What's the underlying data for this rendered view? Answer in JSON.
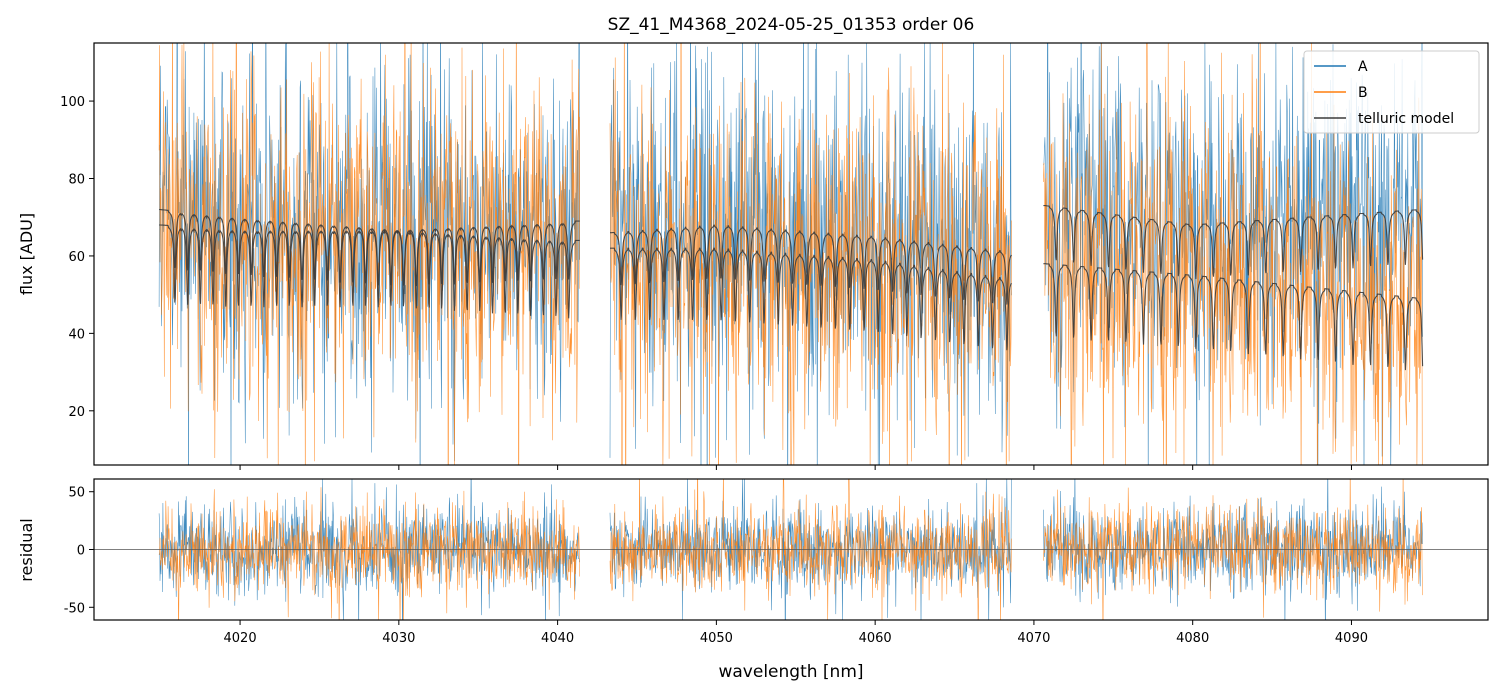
{
  "chart_data": [
    {
      "type": "line",
      "panel": "flux",
      "title": "SZ_41_M4368_2024-05-25_01353  order 06",
      "xlabel": "",
      "ylabel": "flux [ADU]",
      "xlim": [
        4010.8,
        4098.6
      ],
      "ylim": [
        6,
        115
      ],
      "yticks": [
        20,
        40,
        60,
        80,
        100
      ],
      "xticks": [
        4020,
        4030,
        4040,
        4050,
        4060,
        4070,
        4080,
        4090
      ],
      "grid": false,
      "legend": {
        "placement": "top-right",
        "entries": [
          {
            "label": "A",
            "color": "#1f77b4"
          },
          {
            "label": "B",
            "color": "#ff7f0e"
          },
          {
            "label": "telluric model",
            "color": "#3b3b3b"
          }
        ]
      },
      "segments": [
        {
          "x_start": 4014.9,
          "x_end": 4041.4,
          "spacing_nm": 0.8,
          "first_line_nm": 4015.9,
          "line_depth_adu": 15
        },
        {
          "x_start": 4043.3,
          "x_end": 4068.6,
          "spacing_nm": 0.9,
          "first_line_nm": 4044.0,
          "line_depth_adu": 14
        },
        {
          "x_start": 4070.6,
          "x_end": 4094.5,
          "spacing_nm": 1.1,
          "first_line_nm": 4071.4,
          "line_depth_adu": 14
        }
      ],
      "series": [
        {
          "name": "A",
          "color": "#1f77b4",
          "noise_sigma_adu": 20
        },
        {
          "name": "B",
          "color": "#ff7f0e",
          "noise_sigma_adu": 20
        },
        {
          "name": "telluric model",
          "color": "#3b3b3b",
          "continuum": [
            {
              "x": 4014.9,
              "upper": 72,
              "lower": 68
            },
            {
              "x": 4020,
              "upper": 70,
              "lower": 67
            },
            {
              "x": 4030,
              "upper": 67,
              "lower": 67
            },
            {
              "x": 4041.2,
              "upper": 69,
              "lower": 64
            },
            {
              "x": 4043.4,
              "upper": 66,
              "lower": 62
            },
            {
              "x": 4050,
              "upper": 68,
              "lower": 62
            },
            {
              "x": 4060,
              "upper": 65,
              "lower": 59
            },
            {
              "x": 4068.6,
              "upper": 61,
              "lower": 54
            },
            {
              "x": 4070.7,
              "upper": 73,
              "lower": 58
            },
            {
              "x": 4080,
              "upper": 68,
              "lower": 55
            },
            {
              "x": 4094.4,
              "upper": 72,
              "lower": 49
            }
          ]
        }
      ]
    },
    {
      "type": "line",
      "panel": "residual",
      "title": "",
      "xlabel": "wavelength [nm]",
      "ylabel": "residual",
      "xlim": [
        4010.8,
        4098.6
      ],
      "ylim": [
        -61,
        61
      ],
      "yticks": [
        -50,
        0,
        50
      ],
      "xticks": [
        4020,
        4030,
        4040,
        4050,
        4060,
        4070,
        4080,
        4090
      ],
      "zero_line": 0,
      "grid": false,
      "series": [
        {
          "name": "A",
          "color": "#1f77b4",
          "noise_sigma_adu": 18
        },
        {
          "name": "B",
          "color": "#ff7f0e",
          "noise_sigma_adu": 18
        }
      ]
    }
  ]
}
